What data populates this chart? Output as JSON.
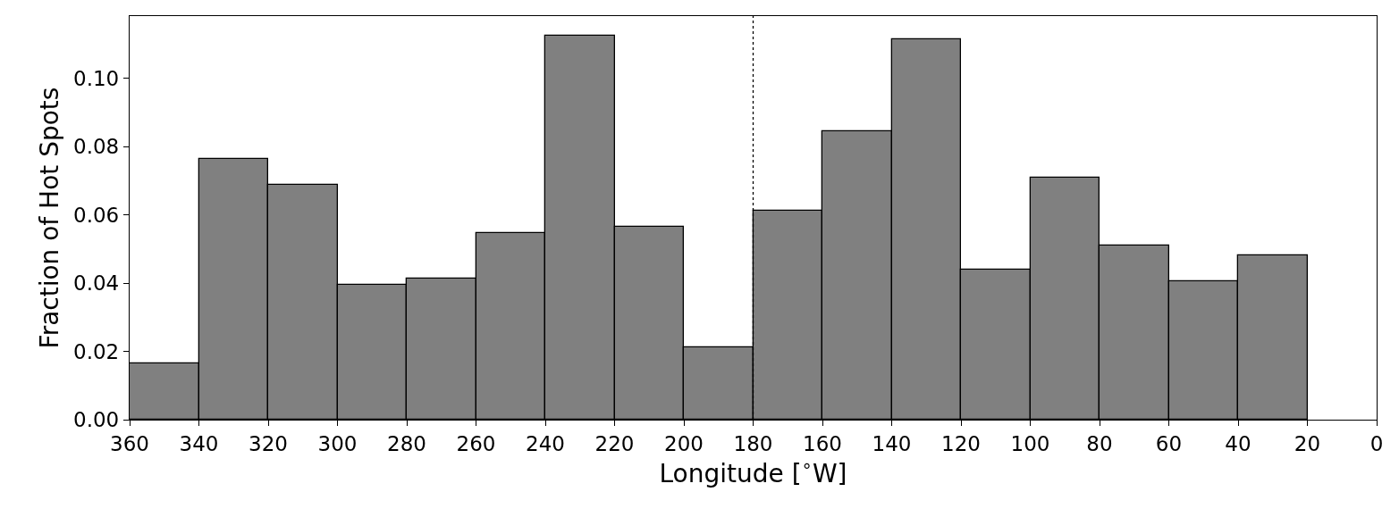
{
  "chart_data": {
    "type": "histogram",
    "xlabel": "Longitude [$^{∘}$W]",
    "ylabel": "Fraction of Hot Spots",
    "bins": [
      360,
      340,
      320,
      300,
      280,
      260,
      240,
      220,
      200,
      180,
      160,
      140,
      120,
      100,
      80,
      60,
      40,
      20,
      0
    ],
    "values": [
      0.0165,
      0.0764,
      0.0688,
      0.0395,
      0.0414,
      0.0547,
      0.1126,
      0.0565,
      0.0212,
      0.0613,
      0.0846,
      0.1115,
      0.044,
      0.0709,
      0.051,
      0.0406,
      0.0482,
      0
    ],
    "color": "#808080",
    "xlim": [
      360,
      0
    ],
    "xticks": [
      360,
      340,
      320,
      300,
      280,
      260,
      240,
      220,
      200,
      180,
      160,
      140,
      120,
      100,
      80,
      60,
      40,
      20,
      0
    ],
    "ylim": [
      0,
      0.1183
    ],
    "yticks": [
      {
        "value": 0,
        "label": "0.00"
      },
      {
        "value": 0.02,
        "label": "0.02"
      },
      {
        "value": 0.04,
        "label": "0.04"
      },
      {
        "value": 0.06,
        "label": "0.06"
      },
      {
        "value": 0.08,
        "label": "0.08"
      },
      {
        "value": 0.1,
        "label": "0.10"
      }
    ],
    "ref_lines": [
      {
        "axis": "x",
        "value": 180,
        "color": "#000000",
        "line_style": "dotted"
      }
    ]
  }
}
